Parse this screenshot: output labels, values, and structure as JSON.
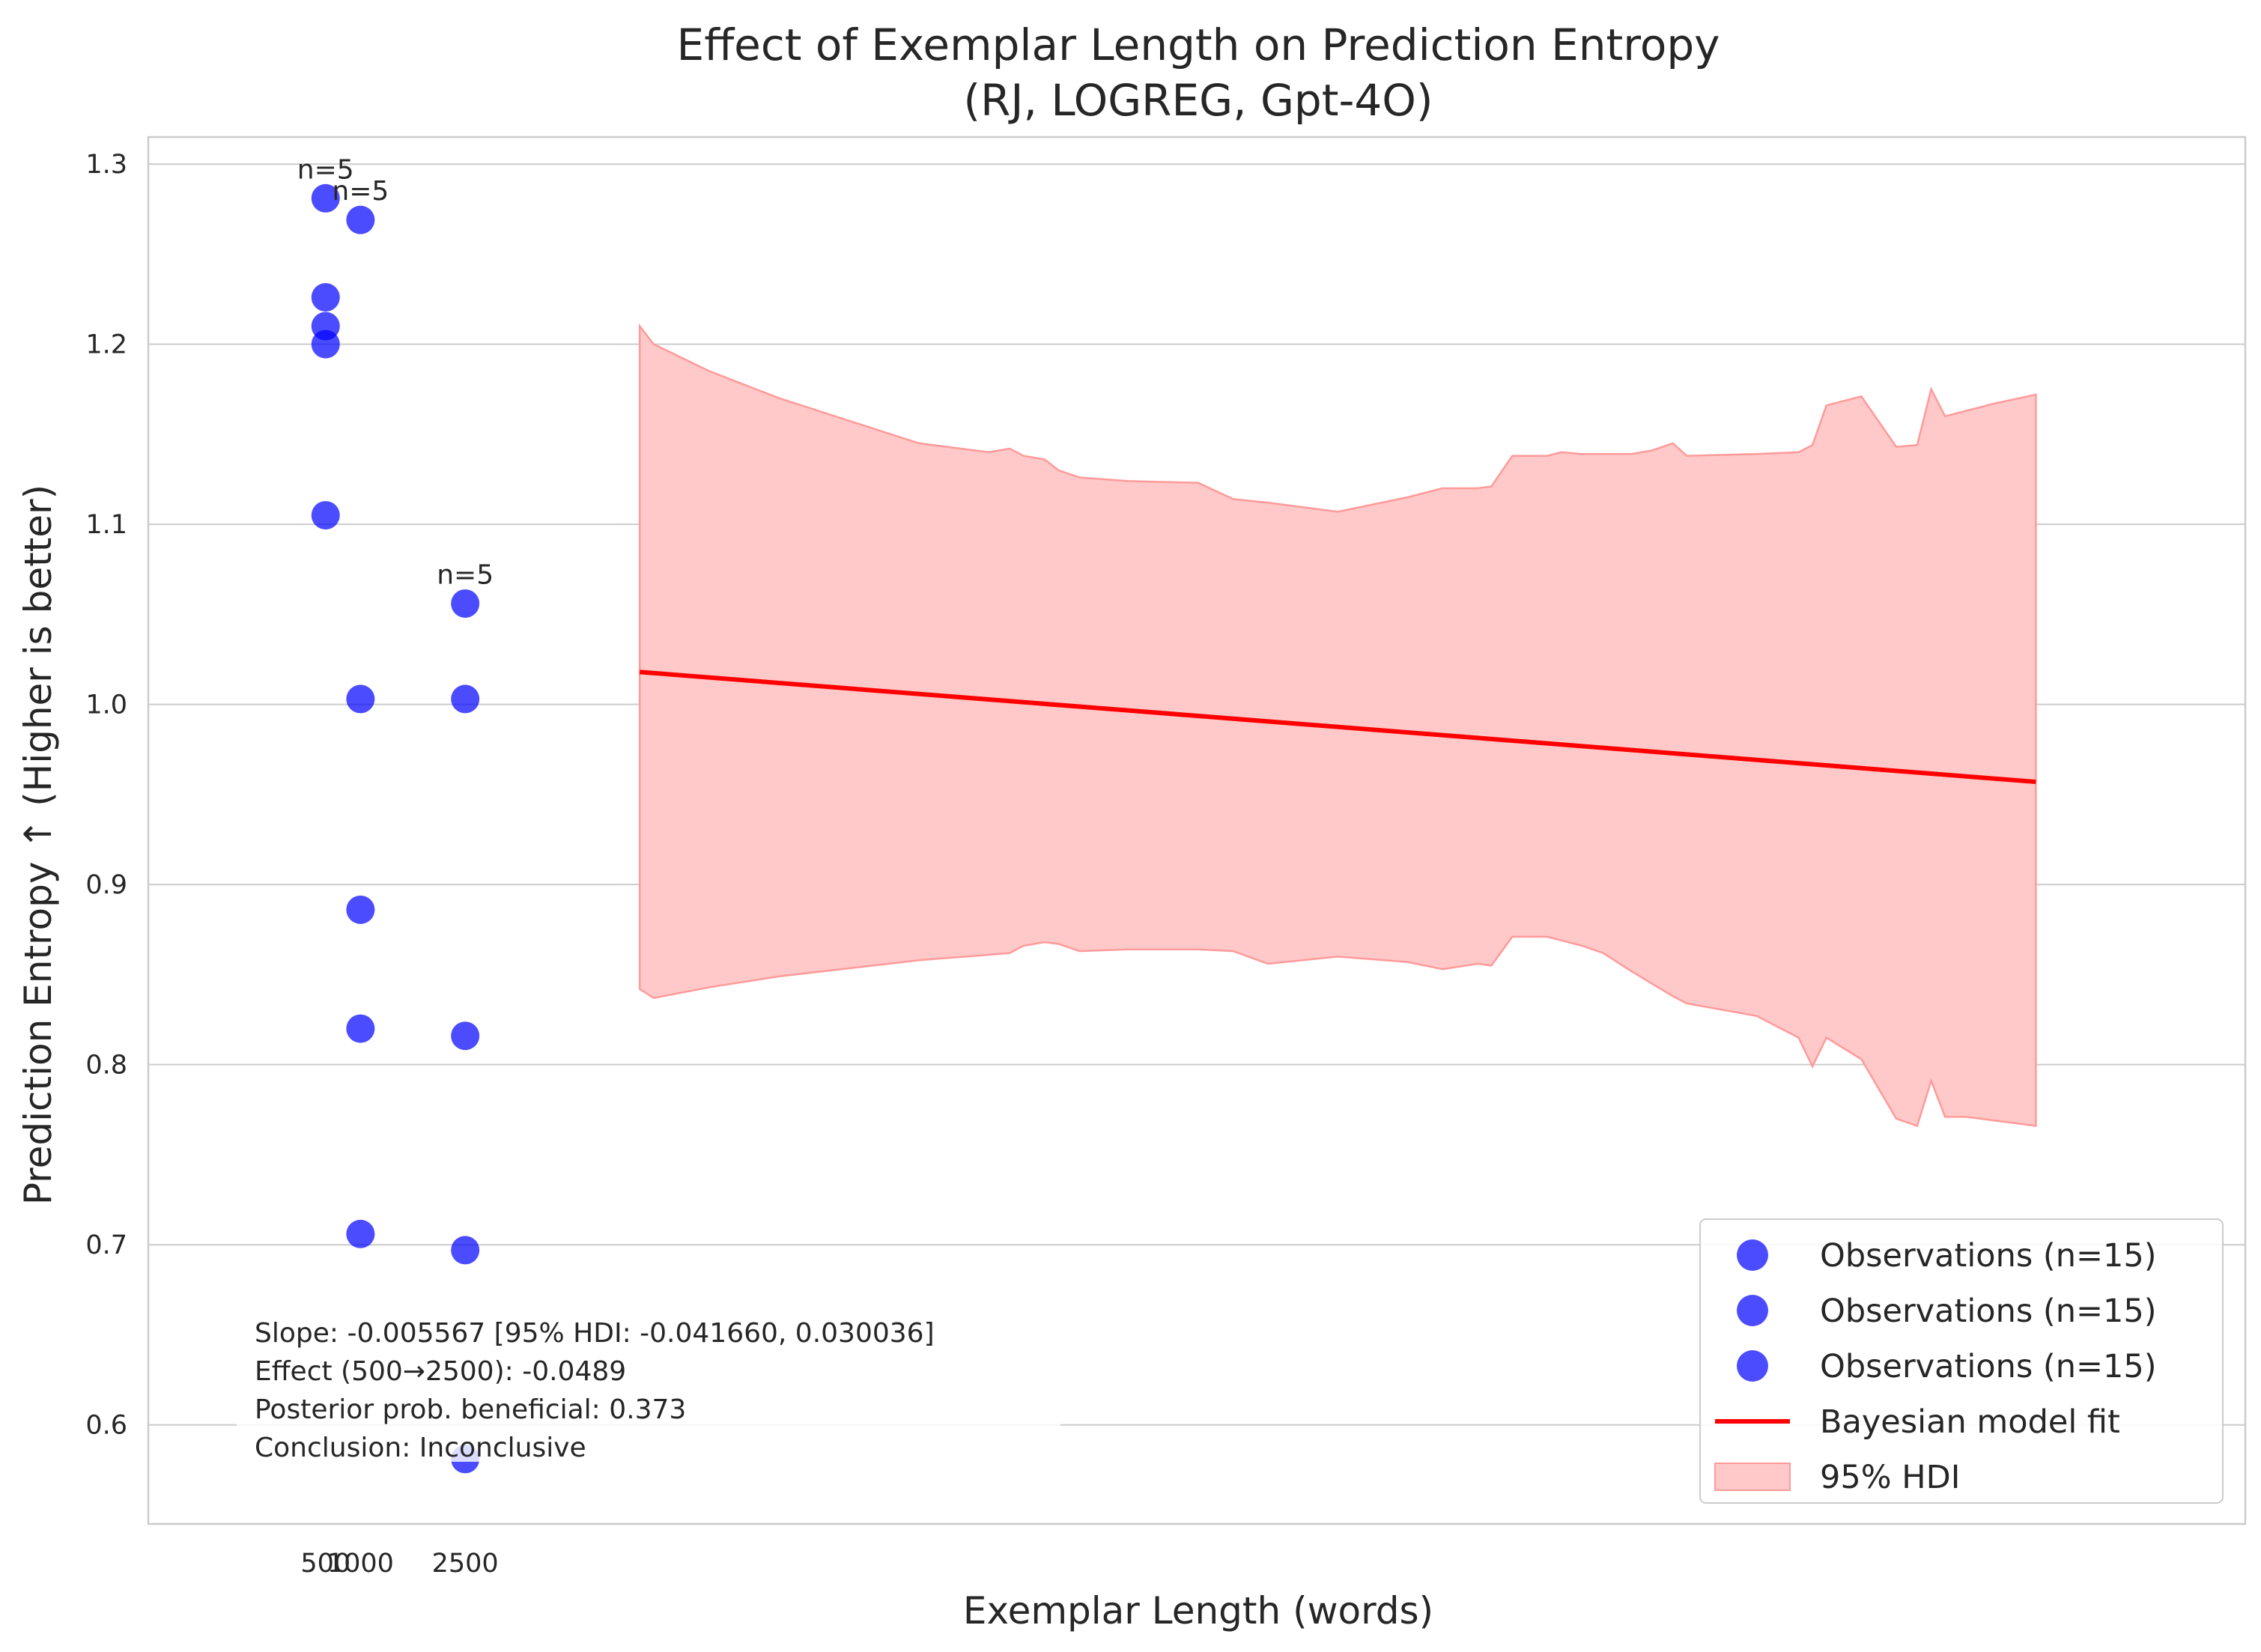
{
  "chart_data": {
    "type": "scatter",
    "title_line1": "Effect of Exemplar Length on Prediction Entropy",
    "title_line2": "(RJ, LOGREG, Gpt-4O)",
    "xlabel": "Exemplar Length (words)",
    "ylabel": "Prediction Entropy ↑ (Higher is better)",
    "ylim": [
      0.545,
      1.315
    ],
    "yticks": [
      0.6,
      0.7,
      0.8,
      0.9,
      1.0,
      1.1,
      1.2,
      1.3
    ],
    "ytick_labels": [
      "0.6",
      "0.7",
      "0.8",
      "0.9",
      "1.0",
      "1.1",
      "1.2",
      "1.3"
    ],
    "xlim": [
      -2040,
      28000
    ],
    "xticks": [
      500,
      1000,
      2500
    ],
    "xtick_labels": [
      "500",
      "1000",
      "2500"
    ],
    "grid": true,
    "legend_position": "lower right",
    "colors": {
      "observations": "#0000ff",
      "fit_line": "#ff0000",
      "hdi_fill": "#ffc9c9",
      "hdi_edge": "#ff9a9a",
      "grid": "#cccccc",
      "axes": "#cccccc"
    },
    "series": [
      {
        "name": "Observations (n=15)",
        "x": [
          500,
          500,
          500,
          500,
          500
        ],
        "y": [
          1.281,
          1.226,
          1.21,
          1.2,
          1.105
        ]
      },
      {
        "name": "Observations (n=15)",
        "x": [
          1000,
          1000,
          1000,
          1000,
          1000
        ],
        "y": [
          1.269,
          1.003,
          0.886,
          0.82,
          0.706
        ]
      },
      {
        "name": "Observations (n=15)",
        "x": [
          2500,
          2500,
          2500,
          2500,
          2500
        ],
        "y": [
          1.056,
          1.003,
          0.816,
          0.697,
          0.581
        ]
      }
    ],
    "fit_line": {
      "name": "Bayesian model fit",
      "x": [
        5000,
        25000
      ],
      "y": [
        1.018,
        0.957
      ]
    },
    "hdi": {
      "name": "95% HDI",
      "x": [
        5000,
        5200,
        6000,
        7000,
        9000,
        10000,
        10300,
        10500,
        10800,
        11000,
        11300,
        12000,
        13000,
        13500,
        14000,
        15000,
        16000,
        16500,
        17000,
        17200,
        17500,
        18000,
        18200,
        18500,
        18800,
        19200,
        19500,
        19800,
        20000,
        21000,
        21600,
        21800,
        22000,
        22500,
        23000,
        23300,
        23500,
        23700,
        24000,
        24200,
        24400,
        25000
      ],
      "upper": [
        1.21,
        1.2,
        1.185,
        1.17,
        1.145,
        1.14,
        1.142,
        1.138,
        1.136,
        1.13,
        1.126,
        1.124,
        1.123,
        1.114,
        1.112,
        1.107,
        1.115,
        1.12,
        1.12,
        1.121,
        1.138,
        1.138,
        1.14,
        1.139,
        1.139,
        1.139,
        1.141,
        1.145,
        1.138,
        1.139,
        1.14,
        1.144,
        1.166,
        1.171,
        1.143,
        1.144,
        1.175,
        1.16,
        1.163,
        1.165,
        1.167,
        1.172
      ],
      "lower": [
        0.842,
        0.837,
        0.843,
        0.849,
        0.858,
        0.861,
        0.862,
        0.866,
        0.868,
        0.867,
        0.863,
        0.864,
        0.864,
        0.863,
        0.856,
        0.86,
        0.857,
        0.853,
        0.856,
        0.855,
        0.871,
        0.871,
        0.869,
        0.866,
        0.862,
        0.852,
        0.845,
        0.838,
        0.834,
        0.827,
        0.815,
        0.799,
        0.815,
        0.803,
        0.77,
        0.766,
        0.791,
        0.771,
        0.771,
        0.77,
        0.769,
        0.766
      ]
    },
    "count_annotations": [
      {
        "text": "n=5",
        "x": 500,
        "y": 1.292
      },
      {
        "text": "n=5",
        "x": 1000,
        "y": 1.28
      },
      {
        "text": "n=5",
        "x": 2500,
        "y": 1.067
      }
    ],
    "stats_box": [
      "Slope: -0.005567 [95% HDI: -0.041660, 0.030036]",
      "Effect (500→2500): -0.0489",
      "Posterior prob. beneficial: 0.373",
      "Conclusion: Inconclusive"
    ]
  }
}
